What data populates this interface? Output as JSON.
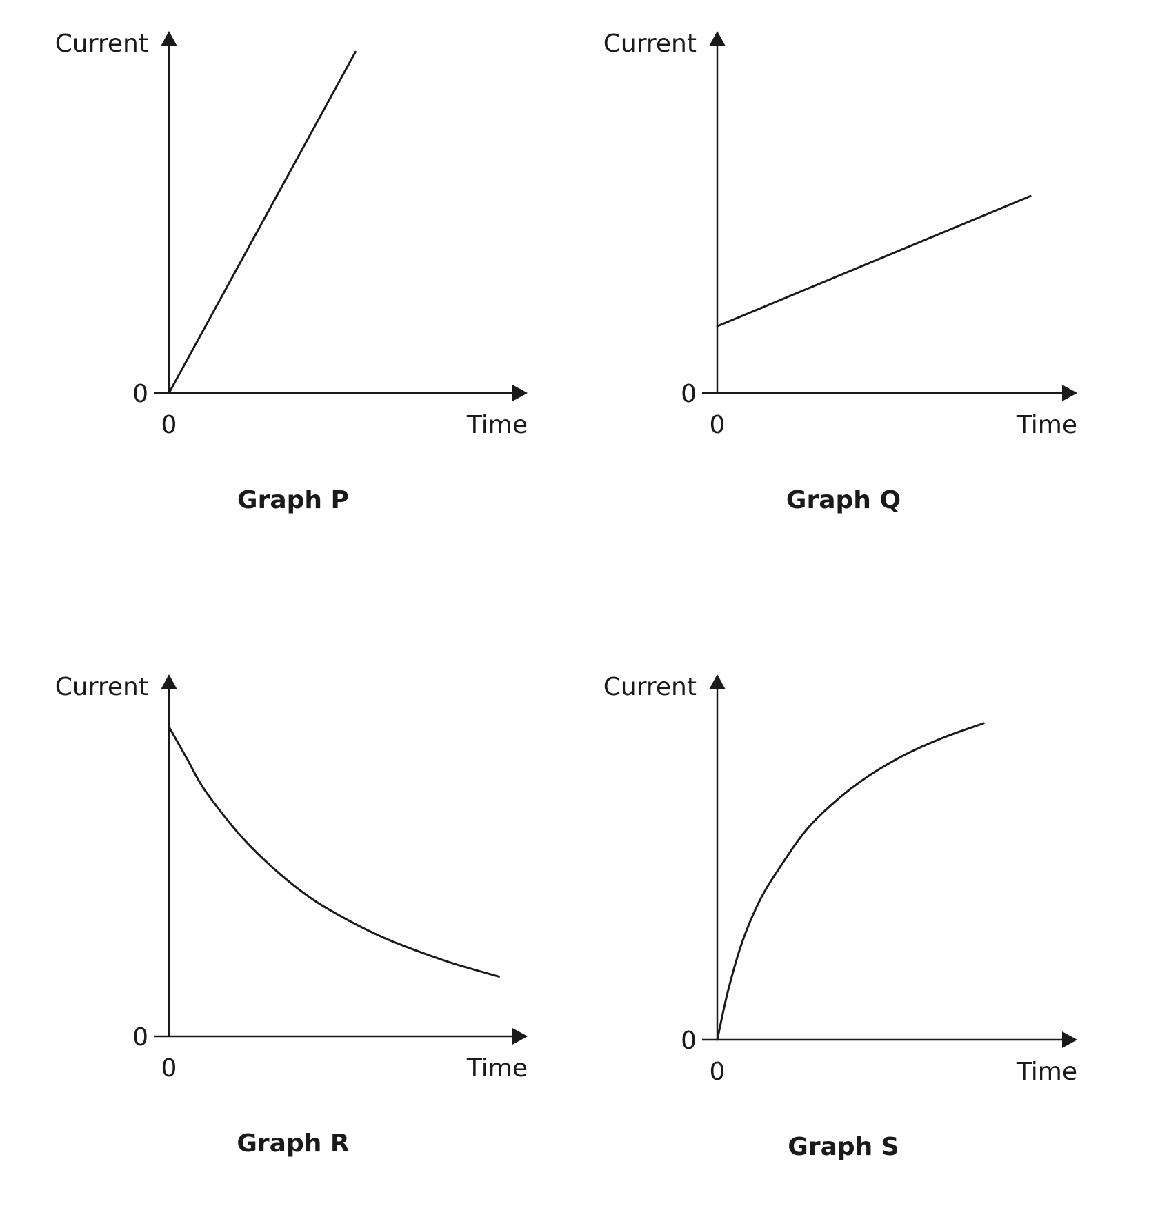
{
  "chart_data": [
    {
      "type": "line",
      "title": "Graph P",
      "ylabel": "Current",
      "xlabel": "Time",
      "x_tick": "0",
      "y_tick": "0",
      "xlim": [
        0,
        1
      ],
      "ylim": [
        0,
        1
      ],
      "series": [
        {
          "x": [
            0,
            0.52
          ],
          "y": [
            0,
            0.97
          ]
        }
      ]
    },
    {
      "type": "line",
      "title": "Graph Q",
      "ylabel": "Current",
      "xlabel": "Time",
      "x_tick": "0",
      "y_tick": "0",
      "xlim": [
        0,
        1
      ],
      "ylim": [
        0,
        1
      ],
      "series": [
        {
          "x": [
            0,
            0.87
          ],
          "y": [
            0.19,
            0.56
          ]
        }
      ]
    },
    {
      "type": "line",
      "title": "Graph R",
      "ylabel": "Current",
      "xlabel": "Time",
      "x_tick": "0",
      "y_tick": "0",
      "xlim": [
        0,
        1
      ],
      "ylim": [
        0,
        1
      ],
      "series": [
        {
          "x": [
            0,
            0.05,
            0.1,
            0.2,
            0.3,
            0.4,
            0.5,
            0.6,
            0.7,
            0.8,
            0.92
          ],
          "y": [
            0.88,
            0.79,
            0.7,
            0.57,
            0.47,
            0.39,
            0.33,
            0.28,
            0.24,
            0.205,
            0.17
          ]
        }
      ]
    },
    {
      "type": "line",
      "title": "Graph S",
      "ylabel": "Current",
      "xlabel": "Time",
      "x_tick": "0",
      "y_tick": "0",
      "xlim": [
        0,
        1
      ],
      "ylim": [
        0,
        1
      ],
      "series": [
        {
          "x": [
            0,
            0.03,
            0.07,
            0.12,
            0.18,
            0.25,
            0.33,
            0.42,
            0.52,
            0.63,
            0.74
          ],
          "y": [
            0,
            0.14,
            0.28,
            0.4,
            0.5,
            0.6,
            0.68,
            0.75,
            0.81,
            0.86,
            0.9
          ]
        }
      ]
    }
  ]
}
